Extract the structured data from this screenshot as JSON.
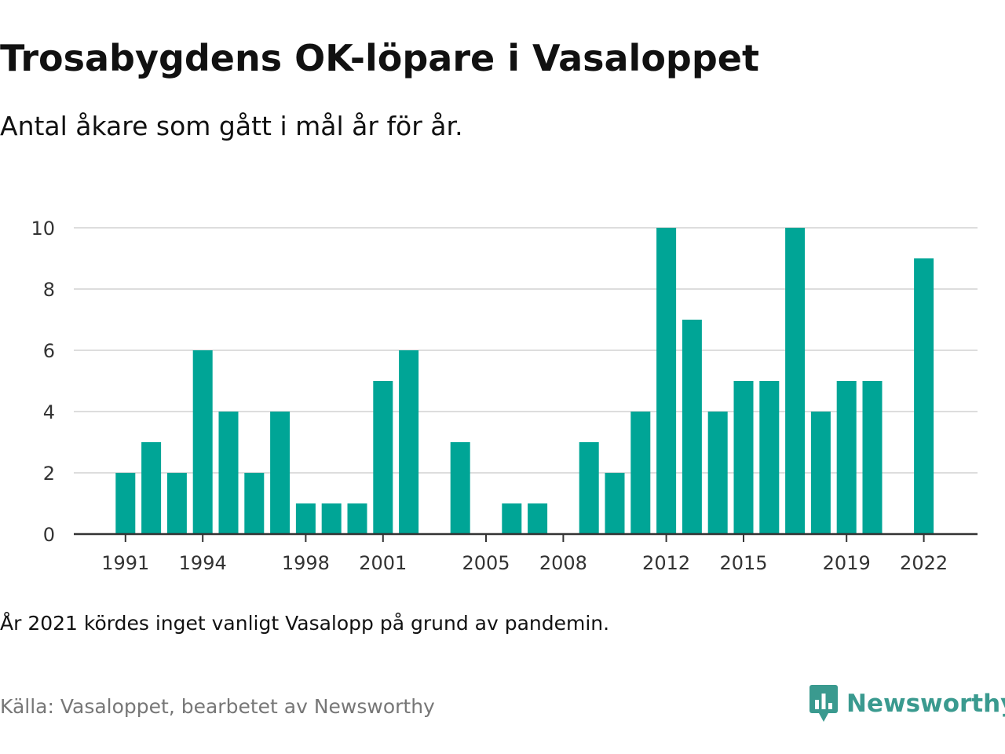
{
  "title": "Trosabygdens OK-löpare i Vasaloppet",
  "subtitle": "Antal åkare som gått i mål år för år.",
  "note": "År 2021 kördes inget vanligt Vasalopp på grund av pandemin.",
  "source": "Källa: Vasaloppet, bearbetet av Newsworthy",
  "logo": {
    "text": "Newsworthy",
    "color": "#3a9a8f"
  },
  "colors": {
    "bar": "#00a596",
    "grid": "#dddddd",
    "axis": "#333333",
    "tick": "#333333"
  },
  "chart_data": {
    "type": "bar",
    "x": [
      1990,
      1991,
      1992,
      1993,
      1994,
      1995,
      1996,
      1997,
      1998,
      1999,
      2000,
      2001,
      2002,
      2003,
      2004,
      2005,
      2006,
      2007,
      2008,
      2009,
      2010,
      2011,
      2012,
      2013,
      2014,
      2015,
      2016,
      2017,
      2018,
      2019,
      2020,
      2021,
      2022
    ],
    "values": [
      null,
      2,
      3,
      2,
      6,
      4,
      2,
      4,
      1,
      1,
      1,
      5,
      6,
      null,
      3,
      null,
      1,
      1,
      null,
      3,
      2,
      4,
      10,
      7,
      4,
      5,
      5,
      10,
      4,
      5,
      5,
      null,
      9
    ],
    "x_ticks": [
      1991,
      1994,
      1998,
      2001,
      2005,
      2008,
      2012,
      2015,
      2019,
      2022
    ],
    "y_ticks": [
      0,
      2,
      4,
      6,
      8,
      10
    ],
    "ylim": [
      0,
      10
    ],
    "grid": true
  }
}
